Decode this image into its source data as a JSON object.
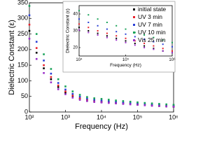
{
  "chart_data": [
    {
      "type": "scatter",
      "x_label": "Frequency (Hz)",
      "y_label": "Dielectric Constant (ε)",
      "log_x": true,
      "legend": "upper right",
      "xlim": [
        100,
        1000000
      ],
      "ylim": [
        0,
        350
      ],
      "xticks": [
        {
          "value": 100,
          "label": "10²"
        },
        {
          "value": 1000,
          "label": "10³"
        },
        {
          "value": 10000,
          "label": "10⁴"
        },
        {
          "value": 100000,
          "label": "10⁵"
        },
        {
          "value": 1000000,
          "label": "10⁶"
        }
      ],
      "yticks": [
        0,
        50,
        100,
        150,
        200,
        250,
        300,
        350
      ],
      "x": [
        100,
        158,
        251,
        398,
        631,
        1000,
        1585,
        2512,
        3981,
        6310,
        10000,
        15849,
        25119,
        39811,
        63096,
        100000,
        158489,
        251189,
        398107,
        630957,
        1000000
      ],
      "series": [
        {
          "name": "initial state",
          "color": "#000000",
          "values": [
            260,
            190,
            140,
            105,
            80,
            62,
            50,
            42,
            37,
            34,
            32,
            30,
            28.5,
            27,
            25.5,
            24,
            22.5,
            21,
            19.5,
            18,
            17
          ]
        },
        {
          "name": "UV 3 min",
          "color": "#e8202a",
          "values": [
            280,
            205,
            150,
            112,
            85,
            66,
            53,
            44,
            39,
            36,
            34,
            32,
            30,
            28.5,
            27,
            25.5,
            24,
            22.5,
            21,
            19.5,
            18
          ]
        },
        {
          "name": "UV 7 min",
          "color": "#2a3fd6",
          "values": [
            310,
            225,
            165,
            123,
            93,
            72,
            58,
            49,
            43,
            39,
            37,
            35,
            33,
            31,
            29.5,
            28,
            26.5,
            25,
            23.5,
            22,
            20.5
          ]
        },
        {
          "name": "UV 10 min",
          "color": "#1aa35a",
          "values": [
            340,
            250,
            185,
            138,
            105,
            82,
            66,
            55,
            48,
            44,
            42,
            39.5,
            37,
            35,
            33,
            31,
            29,
            27.5,
            26,
            24.5,
            23
          ]
        },
        {
          "name": "Vis 25 min",
          "color": "#9b2fc9",
          "values": [
            235,
            170,
            125,
            95,
            73,
            57,
            46,
            39,
            35,
            32,
            30.5,
            29,
            27.5,
            26,
            24.5,
            23,
            21.5,
            20,
            19,
            18,
            17
          ]
        }
      ]
    },
    {
      "type": "scatter",
      "x_label": "Frequency (Hz)",
      "y_label": "Dielectric Constant (ε)",
      "log_x": true,
      "xlim": [
        10000,
        1000000
      ],
      "ylim": [
        15,
        45
      ],
      "xticks": [
        {
          "value": 10000,
          "label": "10⁴"
        },
        {
          "value": 100000,
          "label": "10⁵"
        },
        {
          "value": 1000000,
          "label": "10⁶"
        }
      ],
      "yticks": [
        20,
        30,
        40
      ],
      "x": [
        10000,
        15849,
        25119,
        39811,
        63096,
        100000,
        158489,
        251189,
        398107,
        630957,
        1000000
      ],
      "series": [
        {
          "color": "#000000",
          "values": [
            32,
            30,
            28.5,
            27,
            25.5,
            24,
            22.5,
            21,
            19.5,
            18,
            17
          ]
        },
        {
          "color": "#e8202a",
          "values": [
            34,
            32,
            30,
            28.5,
            27,
            25.5,
            24,
            22.5,
            21,
            19.5,
            18
          ]
        },
        {
          "color": "#2a3fd6",
          "values": [
            37,
            35,
            33,
            31,
            29.5,
            28,
            26.5,
            25,
            23.5,
            22,
            20.5
          ]
        },
        {
          "color": "#1aa35a",
          "values": [
            42,
            39.5,
            37,
            35,
            33,
            31,
            29,
            27.5,
            26,
            24.5,
            23
          ]
        },
        {
          "color": "#9b2fc9",
          "values": [
            30.5,
            29,
            27.5,
            26,
            24.5,
            23,
            21.5,
            20,
            19,
            18,
            17
          ]
        }
      ]
    }
  ]
}
